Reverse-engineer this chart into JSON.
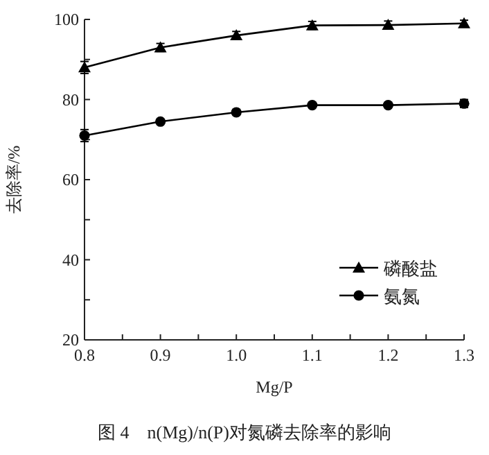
{
  "chart_data": {
    "type": "line",
    "xlabel": "Mg/P",
    "ylabel": "去除率/%",
    "annotations": [
      "图 4　n(Mg)/n(P)对氮磷去除率的影响"
    ],
    "x": [
      0.8,
      0.9,
      1.0,
      1.1,
      1.2,
      1.3
    ],
    "series": [
      {
        "name": "磷酸盐",
        "color": "#000000",
        "marker": "triangle",
        "values": [
          88,
          93,
          96,
          98.5,
          98.6,
          99
        ],
        "errors": [
          1.5,
          1,
          1,
          1,
          1,
          0.8
        ]
      },
      {
        "name": "氨氮",
        "color": "#000000",
        "marker": "circle",
        "values": [
          71,
          74.5,
          76.8,
          78.6,
          78.6,
          79
        ],
        "errors": [
          1.5,
          0.5,
          0.6,
          0.5,
          0.5,
          1
        ]
      }
    ],
    "xlim": [
      0.8,
      1.3
    ],
    "ylim": [
      20,
      100
    ],
    "xticks": [
      0.8,
      {
        "value": 0.85,
        "label": null
      },
      0.9,
      {
        "value": 0.95,
        "label": null
      },
      {
        "value": 1.0,
        "label": "1.0"
      },
      {
        "value": 1.05,
        "label": null
      },
      1.1,
      {
        "value": 1.15,
        "label": null
      },
      1.2,
      {
        "value": 1.25,
        "label": null
      },
      1.3
    ],
    "yticks": [
      20,
      {
        "value": 30,
        "label": null
      },
      40,
      {
        "value": 50,
        "label": null
      },
      60,
      {
        "value": 70,
        "label": null
      },
      80,
      {
        "value": 90,
        "label": null
      },
      100
    ],
    "legend": "bottom right",
    "grid": false,
    "line_style": "solid"
  }
}
